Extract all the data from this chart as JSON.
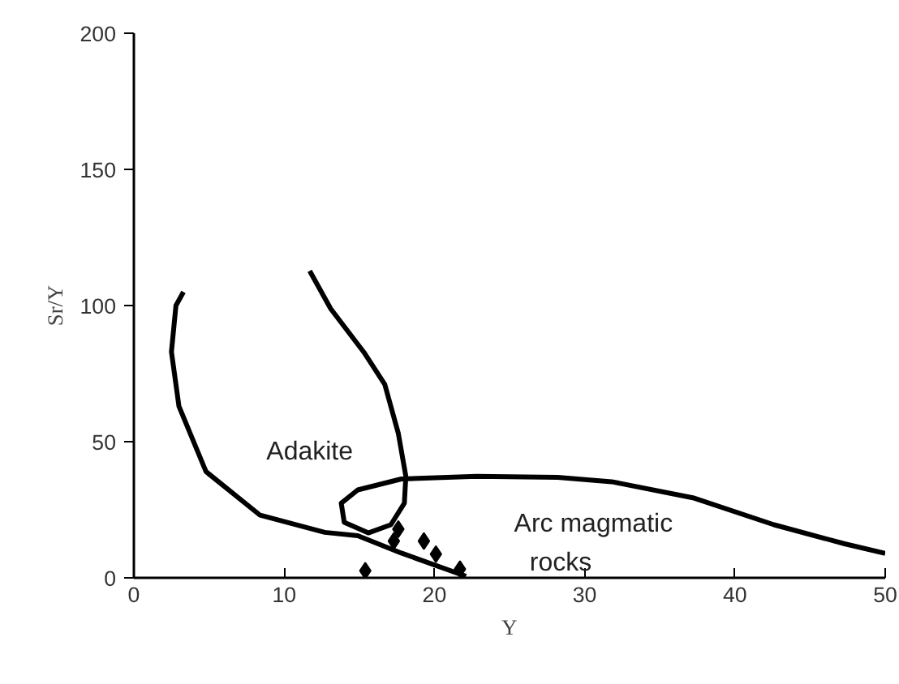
{
  "chart_data": {
    "type": "scatter",
    "xlabel": "Y",
    "ylabel": "Sr/Y",
    "xlim": [
      0,
      50
    ],
    "ylim": [
      0,
      200
    ],
    "xticks": [
      0,
      10,
      20,
      30,
      40,
      50
    ],
    "yticks": [
      0,
      50,
      100,
      150,
      200
    ],
    "series": [
      {
        "color": "#000000",
        "marker": "diamond",
        "x": [
          17.6,
          17.3,
          19.3,
          20.1,
          21.7,
          15.4
        ],
        "values": [
          17.9,
          13.5,
          13.5,
          8.7,
          3.2,
          2.6
        ]
      },
      {
        "type": "line",
        "color": "#000000",
        "marker": "none",
        "x": [
          3.3,
          2.8,
          2.5,
          3.0,
          4.8,
          8.4,
          12.7,
          14.9,
          17.8,
          22.1
        ],
        "values": [
          105,
          100,
          83,
          63,
          39,
          23,
          16.7,
          15.5,
          9.1,
          0.6
        ]
      },
      {
        "type": "line",
        "color": "#000000",
        "marker": "none",
        "x": [
          11.7,
          13.1,
          15.3,
          16.7,
          17.6,
          18.1,
          18.0,
          17.1,
          15.6,
          14.0,
          13.8,
          14.9,
          17.8,
          22.8,
          28.2,
          31.8,
          37.2,
          42.6,
          47.3,
          50
        ],
        "values": [
          112.7,
          98.8,
          82.9,
          71,
          53,
          37.3,
          27.4,
          19.5,
          16.5,
          20.4,
          27.4,
          32.3,
          36.3,
          37.3,
          36.9,
          35.3,
          29.4,
          19.5,
          12.5,
          9
        ]
      }
    ],
    "annotations": [
      "Adakite",
      "Arc    magmatic",
      "rocks"
    ]
  }
}
